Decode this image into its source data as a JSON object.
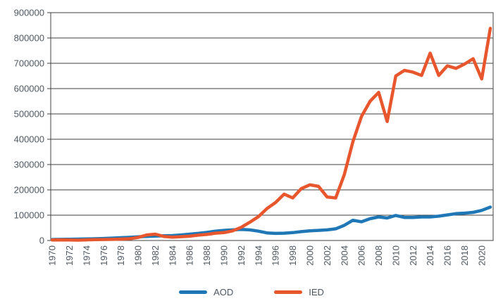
{
  "chart_data": {
    "type": "line",
    "title": "",
    "xlabel": "",
    "ylabel": "",
    "ylim": [
      0,
      900000
    ],
    "ytick_step": 100000,
    "ytick_labels": [
      "0",
      "100000",
      "200000",
      "300000",
      "400000",
      "500000",
      "600000",
      "700000",
      "800000",
      "900000"
    ],
    "xtick_labels": [
      "1970",
      "1972",
      "1974",
      "1976",
      "1978",
      "1980",
      "1982",
      "1984",
      "1986",
      "1988",
      "1990",
      "1992",
      "1994",
      "1996",
      "1998",
      "2000",
      "2002",
      "2004",
      "2006",
      "2008",
      "2010",
      "2012",
      "2014",
      "2016",
      "2018",
      "2020"
    ],
    "grid": "horizontal",
    "legend_position": "bottom",
    "x": [
      1970,
      1971,
      1972,
      1973,
      1974,
      1975,
      1976,
      1977,
      1978,
      1979,
      1980,
      1981,
      1982,
      1983,
      1984,
      1985,
      1986,
      1987,
      1988,
      1989,
      1990,
      1991,
      1992,
      1993,
      1994,
      1995,
      1996,
      1997,
      1998,
      1999,
      2000,
      2001,
      2002,
      2003,
      2004,
      2005,
      2006,
      2007,
      2008,
      2009,
      2010,
      2011,
      2012,
      2013,
      2014,
      2015,
      2016,
      2017,
      2018,
      2019,
      2020,
      2021
    ],
    "series": [
      {
        "name": "AOD",
        "color": "#1F78B5",
        "values": [
          4000,
          4500,
          5000,
          5500,
          6000,
          7000,
          8000,
          9500,
          11000,
          12500,
          14500,
          16000,
          17500,
          18500,
          19500,
          22000,
          25000,
          28000,
          32000,
          37000,
          40000,
          42000,
          44000,
          42000,
          37000,
          30000,
          28000,
          29000,
          31000,
          35000,
          38000,
          40000,
          42000,
          46000,
          60000,
          80000,
          74000,
          86000,
          93000,
          89000,
          99000,
          91000,
          91000,
          93000,
          93000,
          96000,
          101000,
          106000,
          108000,
          111000,
          119000,
          132000
        ]
      },
      {
        "name": "IED",
        "color": "#E8562D",
        "values": [
          2000,
          2500,
          2000,
          1500,
          2500,
          3500,
          4000,
          4500,
          5500,
          7000,
          12000,
          22000,
          25000,
          16000,
          13000,
          15000,
          17000,
          21000,
          24000,
          29000,
          31000,
          38000,
          52000,
          72000,
          94000,
          126000,
          150000,
          183000,
          168000,
          205000,
          220000,
          214000,
          172000,
          168000,
          260000,
          390000,
          490000,
          550000,
          585000,
          470000,
          650000,
          672000,
          665000,
          652000,
          740000,
          652000,
          690000,
          680000,
          697000,
          718000,
          638000,
          838000
        ]
      }
    ],
    "colors": {
      "grid": "#404040",
      "text": "#4e5760",
      "background": "#ffffff"
    }
  },
  "legend": {
    "items": [
      {
        "label": "AOD"
      },
      {
        "label": "IED"
      }
    ]
  }
}
